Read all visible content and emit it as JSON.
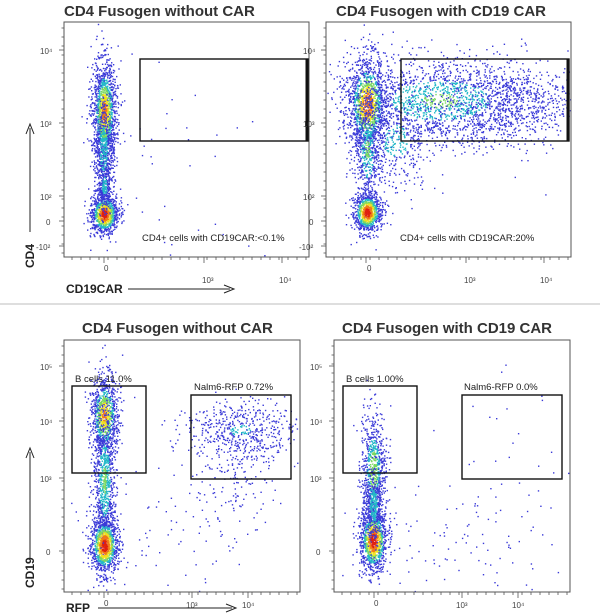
{
  "chart_data": [
    {
      "type": "scatter",
      "title": "CD4 Fusogen without CAR",
      "xlabel": "CD19CAR",
      "ylabel": "CD4",
      "x_ticks": [
        "0",
        "10³",
        "10⁴"
      ],
      "y_ticks": [
        "10⁴",
        "10³",
        "10²",
        "0",
        "-10²"
      ],
      "annotation": "CD4+ cells with CD19CAR:<0.1%",
      "gate_percent": 0.1,
      "gate_label": "",
      "populations": [
        {
          "x": 0,
          "y": 1400,
          "weight": 0.55
        },
        {
          "x": 0,
          "y": 0,
          "weight": 0.4
        }
      ]
    },
    {
      "type": "scatter",
      "title": "CD4 Fusogen with CD19 CAR",
      "xlabel": "",
      "ylabel": "",
      "x_ticks": [
        "0",
        "10³",
        "10⁴"
      ],
      "y_ticks": [
        "10⁴",
        "10³",
        "10²",
        "0",
        "-10²"
      ],
      "annotation": "CD4+ cells with CD19CAR:20%",
      "gate_percent": 20,
      "gate_label": "",
      "populations": [
        {
          "x": 0,
          "y": 1500,
          "weight": 0.4
        },
        {
          "x": 1500,
          "y": 1500,
          "weight": 0.35
        },
        {
          "x": 0,
          "y": 0,
          "weight": 0.25
        }
      ]
    },
    {
      "type": "scatter",
      "title": "CD4 Fusogen without CAR",
      "xlabel": "RFP",
      "ylabel": "CD19",
      "x_ticks": [
        "0",
        "10³",
        "10⁴"
      ],
      "y_ticks": [
        "10⁵",
        "10⁴",
        "10³",
        "0"
      ],
      "gates": [
        {
          "label": "B cells 11.0%",
          "percent": 11.0
        },
        {
          "label": "Nalm6-RFP 0.72%",
          "percent": 0.72
        }
      ],
      "populations": [
        {
          "x": 0,
          "y": 10000,
          "weight": 0.3
        },
        {
          "x": 0,
          "y": 0,
          "weight": 0.55
        },
        {
          "x": 5000,
          "y": 5000,
          "weight": 0.15
        }
      ]
    },
    {
      "type": "scatter",
      "title": "CD4 Fusogen with CD19 CAR",
      "xlabel": "",
      "ylabel": "",
      "x_ticks": [
        "0",
        "10³",
        "10⁴"
      ],
      "y_ticks": [
        "10⁵",
        "10⁴",
        "10³",
        "0"
      ],
      "gates": [
        {
          "label": "B cells 1.00%",
          "percent": 1.0
        },
        {
          "label": "Nalm6-RFP 0.0%",
          "percent": 0.0
        }
      ],
      "populations": [
        {
          "x": 0,
          "y": 0,
          "weight": 0.95
        },
        {
          "x": 5000,
          "y": 500,
          "weight": 0.05
        }
      ]
    }
  ],
  "colors": {
    "density_low": "#3a3ad8",
    "density_mid": "#23b8c8",
    "density_high": "#f0e020",
    "density_peak": "#e02010",
    "divider": "#bdbdbd"
  }
}
